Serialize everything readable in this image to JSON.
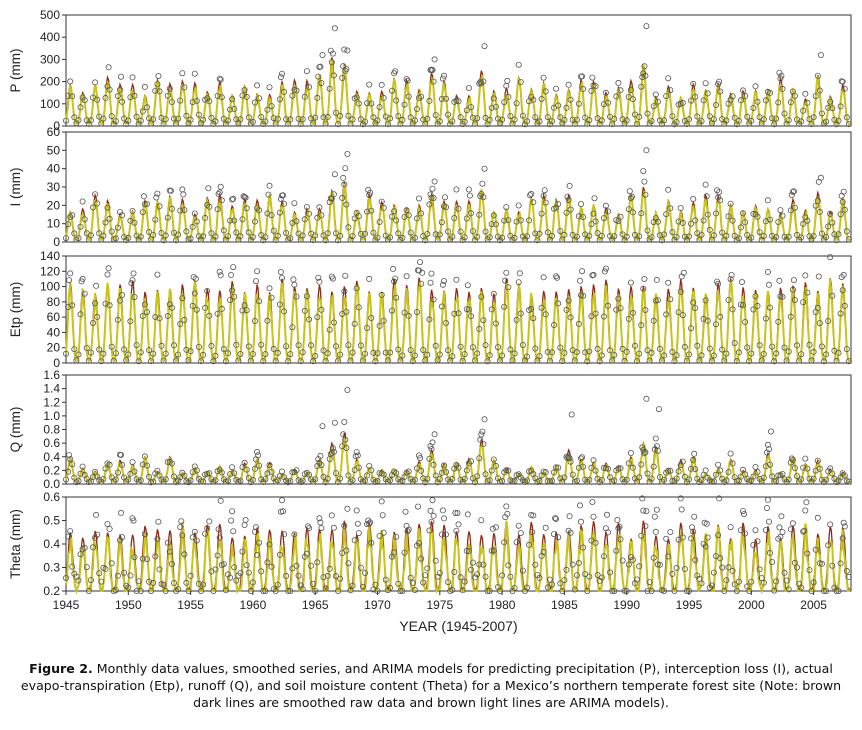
{
  "chart_data": [
    {
      "type": "line",
      "ylabel": "P (mm)",
      "ylim": [
        0,
        500
      ],
      "yticks": [
        "0",
        "100",
        "200",
        "300",
        "400",
        "500"
      ],
      "scale": 500,
      "peak_range": [
        120,
        220
      ],
      "extremes": [
        [
          1966.5,
          310,
          440
        ],
        [
          1967.5,
          280,
          340
        ],
        [
          1978.5,
          250,
          360
        ],
        [
          1991.5,
          280,
          450
        ],
        [
          1965.5,
          230,
          320
        ],
        [
          1974.5,
          240,
          300
        ],
        [
          2005.5,
          230,
          320
        ]
      ]
    },
    {
      "type": "line",
      "ylabel": "I (mm)",
      "ylim": [
        0,
        60
      ],
      "yticks": [
        "0",
        "10",
        "20",
        "30",
        "40",
        "50",
        "60"
      ],
      "scale": 60,
      "peak_range": [
        15,
        26
      ],
      "extremes": [
        [
          1967.5,
          33,
          48
        ],
        [
          1966.5,
          28,
          37
        ],
        [
          1978.5,
          28,
          40
        ],
        [
          1991.5,
          30,
          50
        ],
        [
          1974.5,
          26,
          33
        ],
        [
          2005.5,
          27,
          35
        ]
      ]
    },
    {
      "type": "line",
      "ylabel": "Etp (mm)",
      "ylim": [
        0,
        140
      ],
      "yticks": [
        "0",
        "20",
        "40",
        "60",
        "80",
        "100",
        "120",
        "140"
      ],
      "scale": 140,
      "peak_range": [
        90,
        112
      ],
      "extremes": [
        [
          1973.5,
          112,
          118
        ],
        [
          1994.5,
          110,
          118
        ]
      ]
    },
    {
      "type": "line",
      "ylabel": "Q (mm)",
      "ylim": [
        0,
        1.6
      ],
      "yticks": [
        "0.0",
        "0.2",
        "0.4",
        "0.6",
        "0.8",
        "1.0",
        "1.2",
        "1.4",
        "1.6"
      ],
      "scale": 1.6,
      "peak_range": [
        0.15,
        0.4
      ],
      "extremes": [
        [
          1967.5,
          0.75,
          1.38
        ],
        [
          1966.5,
          0.6,
          0.9
        ],
        [
          1991.5,
          0.6,
          1.25
        ],
        [
          1992.5,
          0.55,
          1.1
        ],
        [
          1985.5,
          0.5,
          1.02
        ],
        [
          1978.5,
          0.65,
          0.95
        ],
        [
          1974.5,
          0.5,
          0.73
        ],
        [
          2001.5,
          0.45,
          0.77
        ],
        [
          1965.5,
          0.35,
          0.85
        ]
      ]
    },
    {
      "type": "line",
      "ylabel": "Theta (mm)",
      "ylim": [
        0.2,
        0.6
      ],
      "yticks": [
        "0.2",
        "0.3",
        "0.4",
        "0.5",
        "0.6"
      ],
      "scale": 0.6,
      "peak_range": [
        0.42,
        0.5
      ],
      "extremes": [
        [
          1967.5,
          0.5,
          0.55
        ],
        [
          1991.5,
          0.5,
          0.54
        ]
      ]
    }
  ],
  "x_axis": {
    "xlim": [
      1945,
      2008
    ],
    "ticks": [
      "1945",
      "1950",
      "1955",
      "1960",
      "1965",
      "1970",
      "1975",
      "1980",
      "1985",
      "1990",
      "1995",
      "2000",
      "2005"
    ],
    "label": "YEAR (1945-2007)"
  },
  "series_colors": {
    "observed": "#555555",
    "smoothed": "#8b2a16",
    "arima": "#c8c41c"
  },
  "caption": {
    "label": "Figure 2.",
    "text": " Monthly data values, smoothed series, and ARIMA models for predicting precipitation (P), interception loss (I), actual evapo-transpiration (Etp), runoff (Q), and soil moisture content (Theta) for a Mexico’s northern temperate forest site (Note: brown dark lines are smoothed raw data and brown light lines are ARIMA models)."
  }
}
